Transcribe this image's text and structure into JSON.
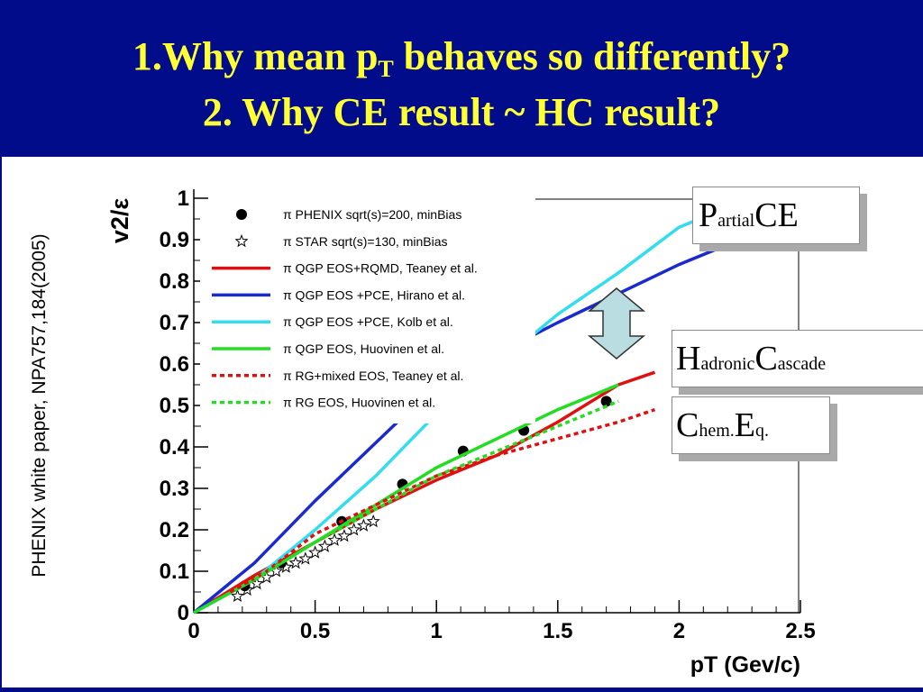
{
  "slide": {
    "title_line1_main": "1.Why mean p",
    "title_line1_sub": "T",
    "title_line1_rest": " behaves so differently?",
    "title_line2": "2. Why CE result ~ HC result?",
    "side_note": "PHENIX white paper, NPA757,184(2005)",
    "colors": {
      "title_bg": "#000c8a",
      "title_text": "#ffff33"
    }
  },
  "boxes": {
    "partial": {
      "cap1": "P",
      "small1": "artial",
      "cap2": "CE"
    },
    "hadronic": {
      "cap1": "H",
      "small1": "adronic",
      "cap2": "C",
      "small2": "ascade"
    },
    "chem": {
      "cap1": "C",
      "small1": "hem.",
      "cap2": "E",
      "small2": "q."
    }
  },
  "chart_data": {
    "type": "line",
    "xlabel": "pT (Gev/c)",
    "ylabel": "v2/ε",
    "xlim": [
      0,
      2.5
    ],
    "ylim": [
      0,
      1.0
    ],
    "xticks": [
      "0",
      "0.5",
      "1",
      "1.5",
      "2",
      "2.5"
    ],
    "yticks": [
      "0",
      "0.1",
      "0.2",
      "0.3",
      "0.4",
      "0.5",
      "0.6",
      "0.7",
      "0.8",
      "0.9",
      "1"
    ],
    "legend_position": "top-left",
    "series": [
      {
        "name": "π PHENIX sqrt(s)=200, minBias",
        "style": "marker-filled-circle",
        "color": "#000000",
        "x": [
          0.21,
          0.36,
          0.61,
          0.86,
          1.11,
          1.36,
          1.7
        ],
        "y": [
          0.065,
          0.12,
          0.22,
          0.31,
          0.39,
          0.44,
          0.51
        ]
      },
      {
        "name": "π STAR sqrt(s)=130, minBias",
        "style": "marker-open-star",
        "color": "#000000",
        "x": [
          0.18,
          0.22,
          0.26,
          0.3,
          0.34,
          0.38,
          0.42,
          0.46,
          0.5,
          0.54,
          0.58,
          0.62,
          0.66,
          0.7,
          0.74
        ],
        "y": [
          0.04,
          0.055,
          0.07,
          0.085,
          0.1,
          0.11,
          0.12,
          0.13,
          0.145,
          0.16,
          0.175,
          0.185,
          0.2,
          0.21,
          0.22
        ]
      },
      {
        "name": "π  QGP EOS+RQMD, Teaney et al.",
        "style": "solid",
        "color": "#e01010",
        "x": [
          0,
          0.25,
          0.5,
          0.75,
          1.0,
          1.25,
          1.5,
          1.75,
          1.9
        ],
        "y": [
          0,
          0.09,
          0.17,
          0.25,
          0.32,
          0.38,
          0.46,
          0.55,
          0.58
        ]
      },
      {
        "name": "π QGP EOS +PCE, Hirano et al.",
        "style": "solid",
        "color": "#1a2ad0",
        "x": [
          0,
          0.25,
          0.5,
          0.75,
          1.0,
          1.5,
          1.75,
          2.0,
          2.25
        ],
        "y": [
          0,
          0.12,
          0.27,
          0.41,
          0.55,
          0.7,
          0.77,
          0.84,
          0.9
        ]
      },
      {
        "name": "π QGP EOS +PCE, Kolb et al.",
        "style": "solid",
        "color": "#33ddf0",
        "x": [
          0,
          0.25,
          0.5,
          0.75,
          1.0,
          1.5,
          1.75,
          2.0,
          2.25
        ],
        "y": [
          0,
          0.08,
          0.2,
          0.33,
          0.48,
          0.72,
          0.82,
          0.93,
          0.99
        ]
      },
      {
        "name": "π QGP EOS, Huovinen et al.",
        "style": "solid",
        "color": "#22dd22",
        "x": [
          0,
          0.25,
          0.5,
          0.75,
          1.0,
          1.25,
          1.5,
          1.75
        ],
        "y": [
          0,
          0.08,
          0.17,
          0.26,
          0.35,
          0.42,
          0.49,
          0.55
        ]
      },
      {
        "name": "π RG+mixed EOS, Teaney et al.",
        "style": "dotted",
        "color": "#e01010",
        "x": [
          0.15,
          0.3,
          0.5,
          0.75,
          1.0,
          1.25,
          1.5,
          1.75,
          1.9
        ],
        "y": [
          0.05,
          0.1,
          0.19,
          0.26,
          0.33,
          0.38,
          0.42,
          0.46,
          0.49
        ]
      },
      {
        "name": "π RG EOS, Huovinen et al.",
        "style": "dotted",
        "color": "#22dd22",
        "x": [
          0.25,
          0.5,
          0.75,
          1.0,
          1.25,
          1.5,
          1.75
        ],
        "y": [
          0.08,
          0.17,
          0.25,
          0.33,
          0.39,
          0.45,
          0.51
        ]
      }
    ]
  }
}
